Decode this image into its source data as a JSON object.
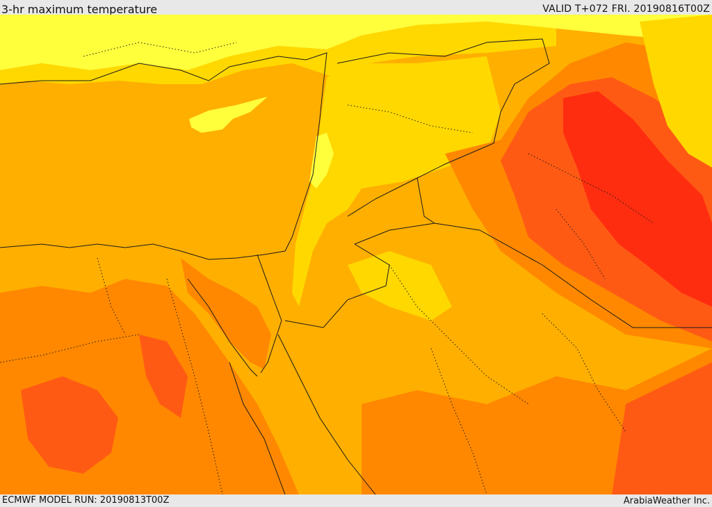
{
  "header": {
    "title": "3-hr maximum temperature",
    "valid": "VALID T+072 FRI. 20190816T00Z"
  },
  "footer": {
    "model_run": "ECMWF MODEL RUN: 20190813T00Z",
    "credit": "ArabiaWeather Inc."
  },
  "colors": {
    "background": "#e8e8e8",
    "cool": "#ffff3c",
    "mild": "#ffd800",
    "warm": "#ffaf00",
    "hot": "#ff8800",
    "very_hot": "#ff5a14",
    "extreme": "#ff2d0f",
    "border": "#1a1a1a"
  }
}
